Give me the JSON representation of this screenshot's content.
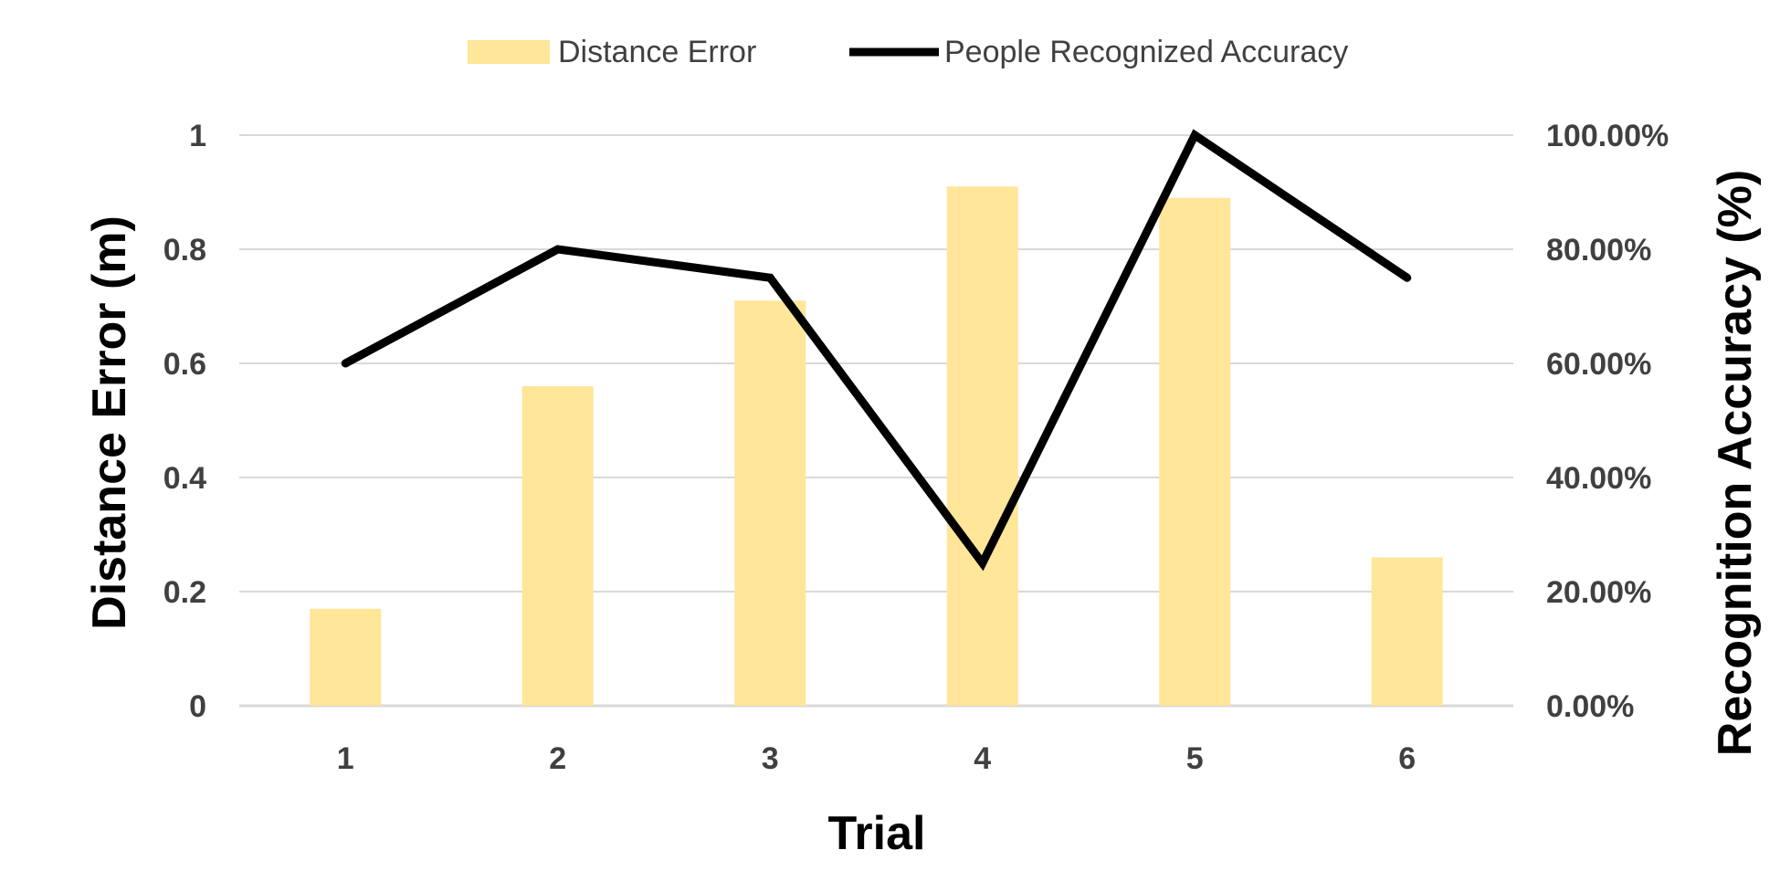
{
  "chart_data": {
    "type": "bar",
    "categories": [
      "1",
      "2",
      "3",
      "4",
      "5",
      "6"
    ],
    "series": [
      {
        "name": "Distance Error",
        "type": "bar",
        "axis": "left",
        "color": "#FFE699",
        "values": [
          0.17,
          0.56,
          0.71,
          0.91,
          0.89,
          0.26
        ]
      },
      {
        "name": "People Recognized Accuracy",
        "type": "line",
        "axis": "right",
        "color": "#000000",
        "values": [
          60,
          80,
          75,
          25,
          100,
          75
        ]
      }
    ],
    "title": "",
    "xlabel": "Trial",
    "ylabel": "Distance Error (m)",
    "y2label": "Recognition Accuracy (%)",
    "ylim": [
      0,
      1
    ],
    "y2lim": [
      0,
      100
    ],
    "yticks": [
      "0",
      "0.2",
      "0.4",
      "0.6",
      "0.8",
      "1"
    ],
    "y2ticks": [
      "0.00%",
      "20.00%",
      "40.00%",
      "60.00%",
      "80.00%",
      "100.00%"
    ],
    "grid": true,
    "gridline_color": "#D9D9D9",
    "legend": "top-center"
  }
}
